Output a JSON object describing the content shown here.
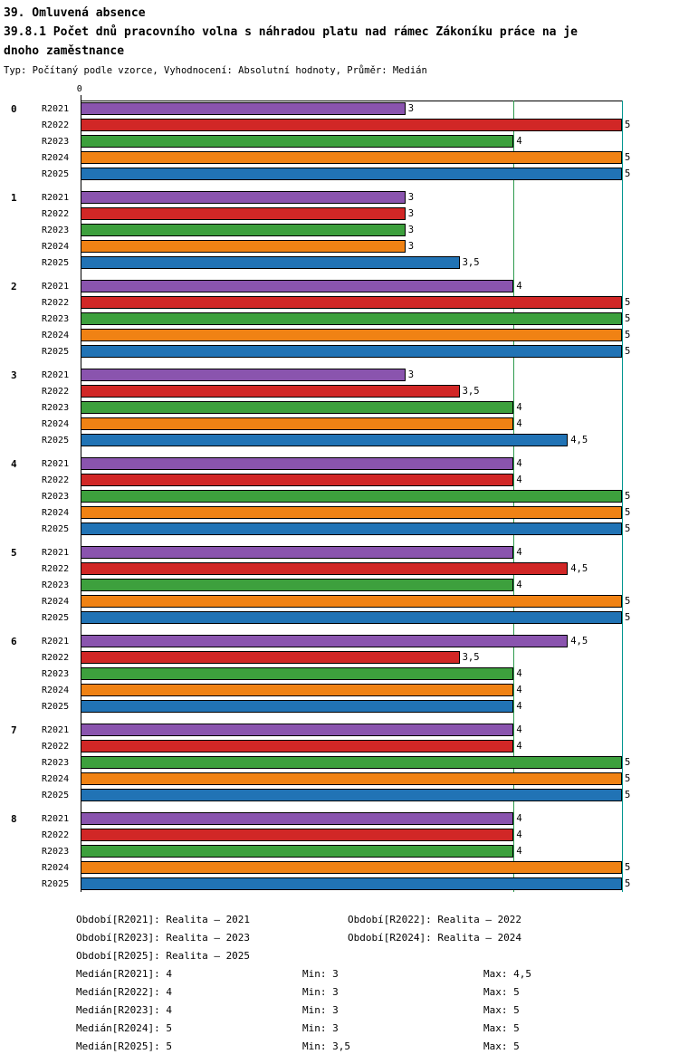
{
  "header": {
    "title1": "39. Omluvená absence",
    "title2_line1": "39.8.1 Počet dnů pracovního volna s náhradou platu nad rámec Zákoníku práce na je",
    "title2_line2": "dnoho zaměstnance",
    "subtitle": "Typ: Počítaný podle vzorce, Vyhodnocení: Absolutní hodnoty, Průměr: Medián"
  },
  "chart_data": {
    "type": "bar",
    "orientation": "horizontal",
    "title": "39.8.1 Počet dnů pracovního volna s náhradou platu nad rámec Zákoníku práce na jednoho zaměstnance",
    "xlabel": "",
    "ylabel": "",
    "grid": "vertical-reference-lines",
    "legend_position": "bottom",
    "axis": {
      "min": 0,
      "max": 5,
      "top_tick_label": "0"
    },
    "gridlines": [
      {
        "value": 4,
        "color": "#2e9b4e"
      },
      {
        "value": 5,
        "color": "#00958f"
      }
    ],
    "series": [
      "R2021",
      "R2022",
      "R2023",
      "R2024",
      "R2025"
    ],
    "series_colors": [
      "#8a54ae",
      "#d12726",
      "#3da03d",
      "#f08214",
      "#2173b5"
    ],
    "groups": [
      {
        "label": "0",
        "values": [
          3,
          5,
          4,
          5,
          5
        ]
      },
      {
        "label": "1",
        "values": [
          3,
          3,
          3,
          3,
          3.5
        ]
      },
      {
        "label": "2",
        "values": [
          4,
          5,
          5,
          5,
          5
        ]
      },
      {
        "label": "3",
        "values": [
          3,
          3.5,
          4,
          4,
          4.5
        ]
      },
      {
        "label": "4",
        "values": [
          4,
          4,
          5,
          5,
          5
        ]
      },
      {
        "label": "5",
        "values": [
          4,
          4.5,
          4,
          5,
          5
        ]
      },
      {
        "label": "6",
        "values": [
          4.5,
          3.5,
          4,
          4,
          4
        ]
      },
      {
        "label": "7",
        "values": [
          4,
          4,
          5,
          5,
          5
        ]
      },
      {
        "label": "8",
        "values": [
          4,
          4,
          4,
          5,
          5
        ]
      }
    ],
    "stats": {
      "median": {
        "R2021": 4,
        "R2022": 4,
        "R2023": 4,
        "R2024": 5,
        "R2025": 5
      },
      "min": {
        "R2021": 3,
        "R2022": 3,
        "R2023": 3,
        "R2024": 3,
        "R2025": 3.5
      },
      "max": {
        "R2021": 4.5,
        "R2022": 5,
        "R2023": 5,
        "R2024": 5,
        "R2025": 5
      }
    }
  },
  "legend": {
    "rows": [
      {
        "left": "Období[R2021]: Realita – 2021",
        "right": "Období[R2022]: Realita – 2022"
      },
      {
        "left": "Období[R2023]: Realita – 2023",
        "right": "Období[R2024]: Realita – 2024"
      },
      {
        "left": "Období[R2025]: Realita – 2025",
        "right": ""
      }
    ]
  },
  "stats_rows": [
    {
      "median": "Medián[R2021]: 4",
      "min": "Min: 3",
      "max": "Max: 4,5"
    },
    {
      "median": "Medián[R2022]: 4",
      "min": "Min: 3",
      "max": "Max: 5"
    },
    {
      "median": "Medián[R2023]: 4",
      "min": "Min: 3",
      "max": "Max: 5"
    },
    {
      "median": "Medián[R2024]: 5",
      "min": "Min: 3",
      "max": "Max: 5"
    },
    {
      "median": "Medián[R2025]: 5",
      "min": "Min: 3,5",
      "max": "Max: 5"
    }
  ]
}
